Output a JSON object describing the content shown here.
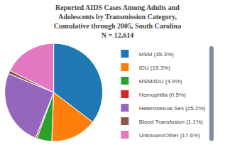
{
  "chart_data": {
    "type": "pie",
    "title": "Reported AIDS Cases Among Adults and\nAdolescents by Transmission Category,\nCumulative through 2005, South Carolina\nN = 12,614",
    "categories": [
      "MSM (35.3%)",
      "IDU (15.3%)",
      "MSM/IDU (4.9%)",
      "Hemophilia (0.5%)",
      "Heterosexual Sex (25.2%)",
      "Blood Transfusion (1.1%)",
      "Unknown/Other (17.6%)"
    ],
    "values": [
      35.3,
      15.3,
      4.9,
      0.5,
      25.2,
      1.1,
      17.6
    ],
    "legend": "right"
  }
}
